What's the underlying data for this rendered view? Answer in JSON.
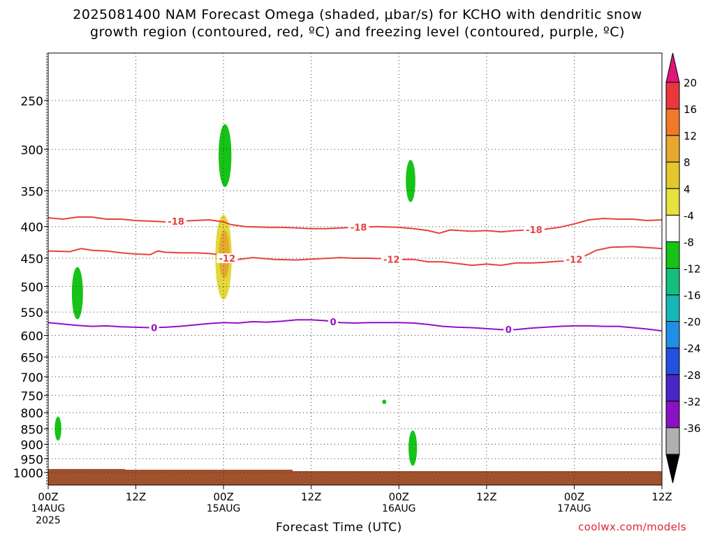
{
  "title": {
    "line1": "2025081400 NAM Forecast Omega (shaded, μbar/s) for KCHO with dendritic snow",
    "line2": "growth region (contoured, red, ºC) and freezing level (contoured, purple, ºC)"
  },
  "credit": "coolwx.com/models",
  "chart_data": {
    "type": "heatmap",
    "xlabel": "Forecast Time (UTC)",
    "ylabel": "",
    "x_range_hours": [
      0,
      84
    ],
    "x_ticks": [
      {
        "hour": 0,
        "label": "00Z",
        "sub": "14AUG",
        "sub2": "2025"
      },
      {
        "hour": 12,
        "label": "12Z",
        "sub": "",
        "sub2": ""
      },
      {
        "hour": 24,
        "label": "00Z",
        "sub": "15AUG",
        "sub2": ""
      },
      {
        "hour": 36,
        "label": "12Z",
        "sub": "",
        "sub2": ""
      },
      {
        "hour": 48,
        "label": "00Z",
        "sub": "16AUG",
        "sub2": ""
      },
      {
        "hour": 60,
        "label": "12Z",
        "sub": "",
        "sub2": ""
      },
      {
        "hour": 72,
        "label": "00Z",
        "sub": "17AUG",
        "sub2": ""
      },
      {
        "hour": 84,
        "label": "12Z",
        "sub": "",
        "sub2": ""
      }
    ],
    "y_axis_pressure_hPa": [
      250,
      300,
      350,
      400,
      450,
      500,
      550,
      600,
      650,
      700,
      750,
      800,
      850,
      900,
      950,
      1000
    ],
    "y_scale": "log pressure (inverted)",
    "grid": true,
    "colorbar": {
      "labels": [
        "20",
        "16",
        "12",
        "8",
        "4",
        "-4",
        "-8",
        "-12",
        "-16",
        "-20",
        "-24",
        "-28",
        "-32",
        "-36"
      ],
      "colors": [
        "#e8383c",
        "#f07a2a",
        "#e6a92e",
        "#e2c82c",
        "#e8e23e",
        "#ffffff",
        "#16c316",
        "#15bd7f",
        "#17b7b7",
        "#1f8fe6",
        "#2450e0",
        "#4a26c6",
        "#8a12c2",
        "#b0b0b0"
      ],
      "top_color": "#e0157a",
      "bottom_color": "#000000"
    },
    "contours": [
      {
        "label": "-18",
        "color": "#e8403e",
        "label_color": "#e8403e",
        "label_hours": [
          17.5,
          42.5,
          66.5
        ],
        "points": [
          [
            0,
            387
          ],
          [
            2,
            389
          ],
          [
            4,
            386
          ],
          [
            6,
            386
          ],
          [
            8,
            389
          ],
          [
            10,
            389
          ],
          [
            12,
            391
          ],
          [
            14,
            392
          ],
          [
            16,
            393
          ],
          [
            18,
            392
          ],
          [
            20,
            391
          ],
          [
            22,
            390
          ],
          [
            24,
            393
          ],
          [
            25,
            397
          ],
          [
            27,
            400
          ],
          [
            30,
            401
          ],
          [
            32,
            401
          ],
          [
            34,
            402
          ],
          [
            36,
            403
          ],
          [
            38,
            403
          ],
          [
            40,
            402
          ],
          [
            42,
            401
          ],
          [
            45,
            400
          ],
          [
            48,
            401
          ],
          [
            50,
            403
          ],
          [
            52,
            406
          ],
          [
            53.5,
            410
          ],
          [
            55,
            405
          ],
          [
            58,
            407
          ],
          [
            60,
            406
          ],
          [
            62,
            408
          ],
          [
            64,
            406
          ],
          [
            66,
            405
          ],
          [
            68,
            404
          ],
          [
            70,
            401
          ],
          [
            72,
            396
          ],
          [
            74,
            390
          ],
          [
            76,
            388
          ],
          [
            78,
            389
          ],
          [
            80,
            389
          ],
          [
            82,
            391
          ],
          [
            84,
            390
          ]
        ]
      },
      {
        "label": "-12",
        "color": "#e8403e",
        "label_color": "#e8403e",
        "label_hours": [
          24.5,
          47,
          72
        ],
        "points": [
          [
            0,
            438
          ],
          [
            3,
            439
          ],
          [
            4.5,
            434
          ],
          [
            6,
            437
          ],
          [
            8,
            438
          ],
          [
            10,
            441
          ],
          [
            12,
            443
          ],
          [
            14,
            444
          ],
          [
            15,
            438
          ],
          [
            16,
            440
          ],
          [
            18,
            441
          ],
          [
            20,
            441
          ],
          [
            22,
            442
          ],
          [
            24,
            445
          ],
          [
            25,
            455
          ],
          [
            26,
            452
          ],
          [
            28,
            449
          ],
          [
            31,
            452
          ],
          [
            34,
            453
          ],
          [
            37,
            451
          ],
          [
            40,
            449
          ],
          [
            42,
            450
          ],
          [
            44,
            450
          ],
          [
            46,
            451
          ],
          [
            48,
            452
          ],
          [
            50,
            452
          ],
          [
            52,
            456
          ],
          [
            54,
            456
          ],
          [
            56,
            459
          ],
          [
            58,
            462
          ],
          [
            60,
            460
          ],
          [
            62,
            462
          ],
          [
            64,
            458
          ],
          [
            66,
            458
          ],
          [
            68,
            457
          ],
          [
            70,
            455
          ],
          [
            71,
            455
          ],
          [
            73,
            449
          ],
          [
            75,
            437
          ],
          [
            77,
            432
          ],
          [
            80,
            431
          ],
          [
            84,
            434
          ]
        ]
      },
      {
        "label": "0",
        "color": "#9210c8",
        "label_color": "#9210c8",
        "label_hours": [
          14.5,
          39,
          63
        ],
        "points": [
          [
            0,
            572
          ],
          [
            2,
            575
          ],
          [
            4,
            578
          ],
          [
            6,
            580
          ],
          [
            8,
            579
          ],
          [
            10,
            581
          ],
          [
            12,
            582
          ],
          [
            14,
            583
          ],
          [
            16,
            582
          ],
          [
            18,
            580
          ],
          [
            20,
            577
          ],
          [
            22,
            574
          ],
          [
            24,
            572
          ],
          [
            26,
            573
          ],
          [
            28,
            570
          ],
          [
            30,
            571
          ],
          [
            32,
            569
          ],
          [
            34,
            566
          ],
          [
            36,
            566
          ],
          [
            38,
            568
          ],
          [
            40,
            572
          ],
          [
            42,
            573
          ],
          [
            44,
            572
          ],
          [
            46,
            572
          ],
          [
            48,
            572
          ],
          [
            50,
            573
          ],
          [
            52,
            576
          ],
          [
            54,
            580
          ],
          [
            56,
            582
          ],
          [
            58,
            583
          ],
          [
            60,
            585
          ],
          [
            62,
            587
          ],
          [
            64,
            587
          ],
          [
            66,
            584
          ],
          [
            68,
            582
          ],
          [
            70,
            580
          ],
          [
            72,
            579
          ],
          [
            74,
            579
          ],
          [
            76,
            580
          ],
          [
            78,
            580
          ],
          [
            80,
            583
          ],
          [
            82,
            586
          ],
          [
            84,
            590
          ]
        ]
      }
    ],
    "shaded_regions": [
      {
        "omega": -6,
        "color": "#16c316",
        "shape": "ellipse",
        "hour": 1.35,
        "p_top": 812,
        "p_bottom": 888
      },
      {
        "omega": -6,
        "color": "#16c316",
        "shape": "ellipse",
        "hour": 4.0,
        "p_top": 465,
        "p_bottom": 565
      },
      {
        "omega": -6,
        "color": "#16c316",
        "shape": "ellipse",
        "hour": 24.2,
        "p_top": 273,
        "p_bottom": 345
      },
      {
        "omega": -6,
        "color": "#16c316",
        "shape": "ellipse",
        "hour": 49.6,
        "p_top": 312,
        "p_bottom": 365
      },
      {
        "omega": -6,
        "color": "#16c316",
        "shape": "ellipse",
        "hour": 46.0,
        "p_top": 762,
        "p_bottom": 775
      },
      {
        "omega": -6,
        "color": "#16c316",
        "shape": "ellipse",
        "hour": 49.9,
        "p_top": 855,
        "p_bottom": 975
      },
      {
        "omega": 6,
        "color": "#e2d83a",
        "shape": "ellipse",
        "hour": 24.0,
        "p_top": 383,
        "p_bottom": 525
      },
      {
        "omega": 10,
        "color": "#e6a92e",
        "shape": "ellipse",
        "hour": 24.1,
        "p_top": 405,
        "p_bottom": 485
      }
    ],
    "terrain": {
      "color": "#a0522d",
      "label": "below ground"
    }
  }
}
